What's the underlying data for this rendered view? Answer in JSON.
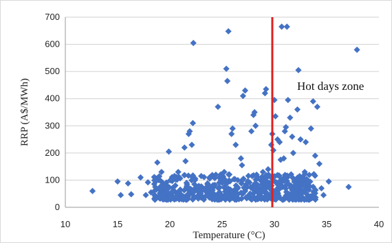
{
  "chart_data": {
    "type": "scatter",
    "xlabel": "Temperature (°C)",
    "ylabel": "RRP (A$/MWh)",
    "xlim": [
      10,
      40
    ],
    "ylim": [
      0,
      700
    ],
    "x_ticks": [
      10,
      15,
      20,
      25,
      30,
      35,
      40
    ],
    "y_ticks": [
      0,
      100,
      200,
      300,
      400,
      500,
      600,
      700
    ],
    "grid": "horizontal",
    "marker": "diamond",
    "marker_color": "#4472c4",
    "threshold_line": {
      "x": 29.8,
      "color": "#e02020"
    },
    "annotation": "Hot days zone",
    "series": [
      {
        "points": [
          [
            12.6,
            60
          ],
          [
            15.0,
            95
          ],
          [
            15.3,
            45
          ],
          [
            16.0,
            88
          ],
          [
            16.3,
            48
          ],
          [
            17.2,
            110
          ],
          [
            17.7,
            45
          ],
          [
            17.9,
            92
          ],
          [
            18.2,
            55
          ],
          [
            18.6,
            75
          ],
          [
            18.8,
            165
          ],
          [
            19.0,
            40
          ],
          [
            19.2,
            130
          ],
          [
            19.4,
            60
          ],
          [
            19.7,
            80
          ],
          [
            19.9,
            205
          ],
          [
            20.1,
            100
          ],
          [
            20.3,
            55
          ],
          [
            20.6,
            35
          ],
          [
            20.8,
            130
          ],
          [
            21.0,
            65
          ],
          [
            21.2,
            40
          ],
          [
            21.4,
            220
          ],
          [
            21.5,
            170
          ],
          [
            21.6,
            90
          ],
          [
            21.8,
            270
          ],
          [
            21.9,
            280
          ],
          [
            22.0,
            55
          ],
          [
            22.1,
            230
          ],
          [
            22.2,
            310
          ],
          [
            22.25,
            605
          ],
          [
            22.4,
            100
          ],
          [
            22.6,
            40
          ],
          [
            22.8,
            70
          ],
          [
            23.0,
            115
          ],
          [
            23.2,
            35
          ],
          [
            23.4,
            60
          ],
          [
            23.6,
            85
          ],
          [
            23.8,
            110
          ],
          [
            24.0,
            45
          ],
          [
            24.2,
            75
          ],
          [
            24.4,
            120
          ],
          [
            24.6,
            370
          ],
          [
            24.8,
            50
          ],
          [
            25.0,
            90
          ],
          [
            25.2,
            130
          ],
          [
            25.4,
            510
          ],
          [
            25.5,
            465
          ],
          [
            25.6,
            648
          ],
          [
            25.7,
            40
          ],
          [
            25.9,
            270
          ],
          [
            26.0,
            290
          ],
          [
            26.1,
            60
          ],
          [
            26.3,
            230
          ],
          [
            26.5,
            100
          ],
          [
            26.6,
            30
          ],
          [
            26.8,
            180
          ],
          [
            26.9,
            155
          ],
          [
            27.0,
            410
          ],
          [
            27.2,
            430
          ],
          [
            27.4,
            75
          ],
          [
            27.6,
            45
          ],
          [
            27.8,
            280
          ],
          [
            28.0,
            340
          ],
          [
            28.1,
            350
          ],
          [
            28.2,
            300
          ],
          [
            28.3,
            120
          ],
          [
            28.5,
            60
          ],
          [
            28.7,
            35
          ],
          [
            28.9,
            130
          ],
          [
            29.1,
            420
          ],
          [
            29.2,
            435
          ],
          [
            29.4,
            140
          ],
          [
            29.5,
            90
          ],
          [
            29.7,
            230
          ],
          [
            29.8,
            270
          ],
          [
            29.9,
            210
          ],
          [
            30.0,
            395
          ],
          [
            30.1,
            335
          ],
          [
            30.3,
            250
          ],
          [
            30.5,
            240
          ],
          [
            30.6,
            175
          ],
          [
            30.7,
            665
          ],
          [
            30.9,
            180
          ],
          [
            31.0,
            280
          ],
          [
            31.1,
            295
          ],
          [
            31.2,
            665
          ],
          [
            31.3,
            395
          ],
          [
            31.5,
            330
          ],
          [
            31.7,
            260
          ],
          [
            31.8,
            200
          ],
          [
            32.0,
            100
          ],
          [
            32.2,
            360
          ],
          [
            32.3,
            505
          ],
          [
            32.5,
            250
          ],
          [
            32.7,
            60
          ],
          [
            32.9,
            130
          ],
          [
            33.0,
            240
          ],
          [
            33.2,
            40
          ],
          [
            33.5,
            290
          ],
          [
            33.7,
            390
          ],
          [
            33.9,
            190
          ],
          [
            34.1,
            370
          ],
          [
            34.3,
            160
          ],
          [
            34.5,
            70
          ],
          [
            34.7,
            45
          ],
          [
            35.2,
            95
          ],
          [
            37.1,
            75
          ],
          [
            37.9,
            580
          ]
        ]
      }
    ]
  }
}
